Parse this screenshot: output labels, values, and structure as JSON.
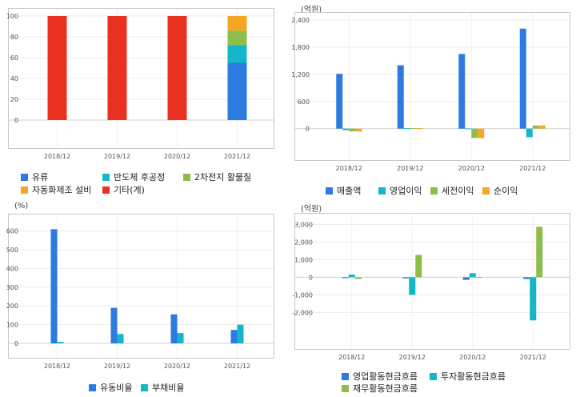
{
  "chart_data": [
    {
      "type": "bar",
      "stacked": true,
      "unit": "",
      "categories": [
        "2018/12",
        "2019/12",
        "2020/12",
        "2021/12"
      ],
      "ylim": [
        0,
        100
      ],
      "yticks": [
        "0",
        "20",
        "40",
        "60",
        "80",
        "100"
      ],
      "series": [
        {
          "name": "유류",
          "color": "#2e7be0",
          "values": [
            0,
            0,
            0,
            55
          ]
        },
        {
          "name": "반도체 후공정",
          "color": "#13b7c7",
          "values": [
            0,
            0,
            0,
            17
          ]
        },
        {
          "name": "2차전지 활물질",
          "color": "#8dbe4b",
          "values": [
            0,
            0,
            0,
            14
          ]
        },
        {
          "name": "자동화제조 설비",
          "color": "#f5a623",
          "values": [
            0,
            0,
            0,
            14
          ]
        },
        {
          "name": "기타(계)",
          "color": "#e8321f",
          "values": [
            100,
            100,
            100,
            0
          ]
        }
      ]
    },
    {
      "type": "bar",
      "unit": "(억원)",
      "categories": [
        "2018/12",
        "2019/12",
        "2020/12",
        "2021/12"
      ],
      "ylim": [
        -200,
        2400
      ],
      "yticks": [
        "0",
        "600",
        "1,200",
        "1,800",
        "2,400"
      ],
      "series": [
        {
          "name": "매출액",
          "color": "#2e7be0",
          "values": [
            1210,
            1400,
            1650,
            2210
          ]
        },
        {
          "name": "영업이익",
          "color": "#13b7c7",
          "values": [
            -35,
            10,
            5,
            -190
          ]
        },
        {
          "name": "세전이익",
          "color": "#8dbe4b",
          "values": [
            -60,
            10,
            -205,
            70
          ]
        },
        {
          "name": "순이익",
          "color": "#f5a623",
          "values": [
            -65,
            10,
            -210,
            70
          ]
        }
      ]
    },
    {
      "type": "bar",
      "unit": "(%)",
      "categories": [
        "2018/12",
        "2019/12",
        "2020/12",
        "2021/12"
      ],
      "ylim": [
        0,
        650
      ],
      "yticks": [
        "0",
        "100",
        "200",
        "300",
        "400",
        "500",
        "600"
      ],
      "series": [
        {
          "name": "유동비율",
          "color": "#2e7be0",
          "values": [
            610,
            190,
            155,
            72
          ]
        },
        {
          "name": "부채비율",
          "color": "#13b7c7",
          "values": [
            8,
            50,
            55,
            100
          ]
        }
      ]
    },
    {
      "type": "bar",
      "unit": "(억원)",
      "categories": [
        "2018/12",
        "2019/12",
        "2020/12",
        "2021/12"
      ],
      "ylim": [
        -2800,
        3200
      ],
      "yticks": [
        "-2,000",
        "-1,000",
        "0",
        "1,000",
        "2,000",
        "3,000"
      ],
      "series": [
        {
          "name": "영업활동현금흐름",
          "color": "#2e7be0",
          "values": [
            -50,
            -60,
            -150,
            -100
          ]
        },
        {
          "name": "투자활동현금흐름",
          "color": "#13b7c7",
          "values": [
            150,
            -1000,
            230,
            -2450
          ]
        },
        {
          "name": "재무활동현금흐름",
          "color": "#8dbe4b",
          "values": [
            -100,
            1270,
            20,
            2870
          ]
        }
      ]
    }
  ]
}
